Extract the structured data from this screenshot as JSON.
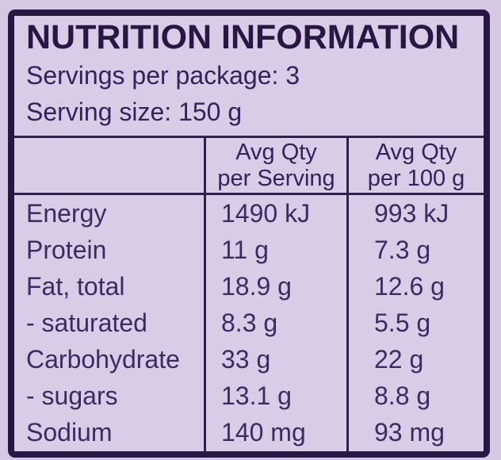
{
  "panel": {
    "title": "NUTRITION INFORMATION",
    "servings_per_package": "Servings per package: 3",
    "serving_size": "Serving size: 150 g"
  },
  "table": {
    "header": {
      "per_serving": {
        "line1": "Avg Qty",
        "line2": "per Serving"
      },
      "per_100g": {
        "line1": "Avg Qty",
        "line2": "per 100 g"
      }
    },
    "rows": [
      {
        "label": "Energy",
        "per_serving": "1490 kJ",
        "per_100g": "993 kJ"
      },
      {
        "label": "Protein",
        "per_serving": "11 g",
        "per_100g": "7.3 g"
      },
      {
        "label": "Fat, total",
        "per_serving": "18.9 g",
        "per_100g": "12.6 g"
      },
      {
        "label": "- saturated",
        "per_serving": "8.3 g",
        "per_100g": "5.5 g"
      },
      {
        "label": "Carbohydrate",
        "per_serving": "33 g",
        "per_100g": "22 g"
      },
      {
        "label": "- sugars",
        "per_serving": "13.1 g",
        "per_100g": "8.8 g"
      },
      {
        "label": "Sodium",
        "per_serving": "140 mg",
        "per_100g": "93 mg"
      }
    ]
  },
  "colors": {
    "page_background": "#d5c8e2",
    "panel_background": "#d8cce6",
    "border": "#2a1643",
    "grid_line": "#311e52",
    "title_text": "#2a1643",
    "body_text": "#3c2a62"
  }
}
